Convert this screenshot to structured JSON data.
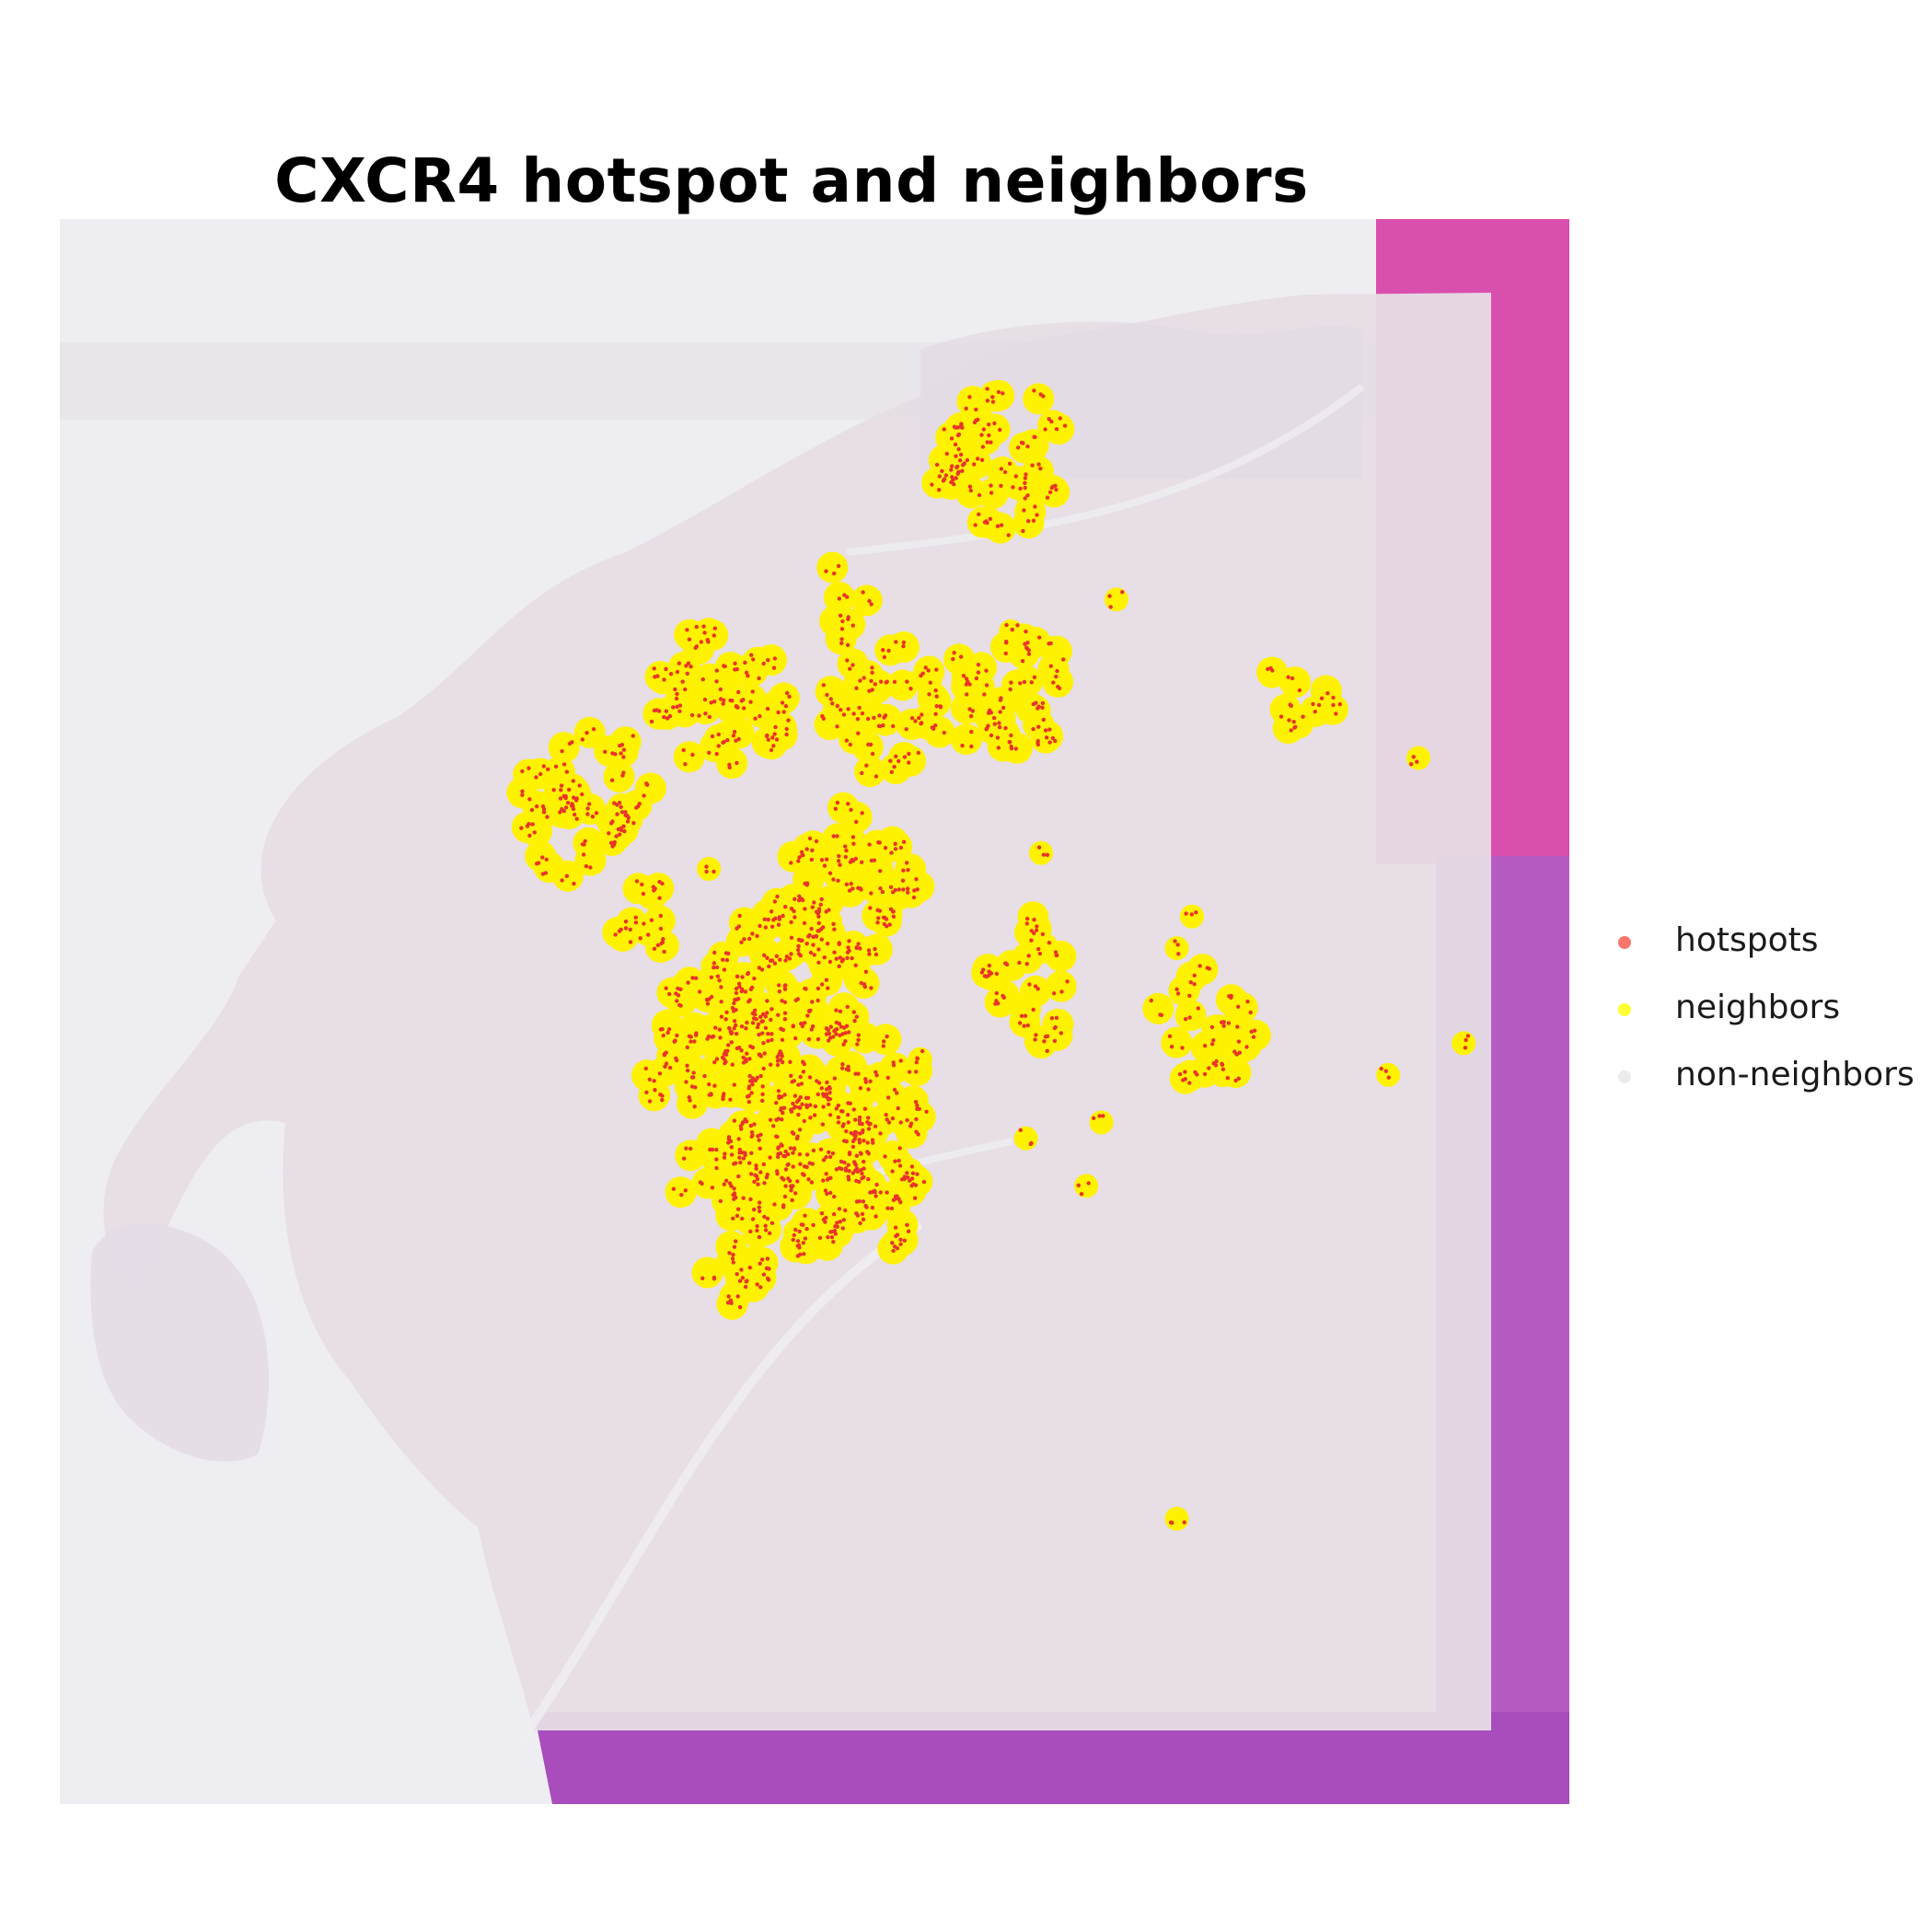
{
  "chart_data": {
    "type": "scatter",
    "title": "CXCR4 hotspot and neighbors",
    "xlabel": "",
    "ylabel": "",
    "grid": false,
    "legend_position": "right",
    "background": "H&E tissue section image (faded overlay)",
    "series": [
      {
        "name": "hotspots",
        "color": "#F8766D"
      },
      {
        "name": "neighbors",
        "color": "#FFFF33"
      },
      {
        "name": "non-neighbors",
        "color": "#EBEBEB"
      }
    ],
    "clusters": [
      {
        "x": 0.62,
        "y": 0.15,
        "n": 40
      },
      {
        "x": 0.52,
        "y": 0.24,
        "n": 6
      },
      {
        "x": 0.44,
        "y": 0.3,
        "n": 40
      },
      {
        "x": 0.55,
        "y": 0.31,
        "n": 30
      },
      {
        "x": 0.63,
        "y": 0.3,
        "n": 30
      },
      {
        "x": 0.35,
        "y": 0.37,
        "n": 40
      },
      {
        "x": 0.52,
        "y": 0.42,
        "n": 50
      },
      {
        "x": 0.48,
        "y": 0.49,
        "n": 60
      },
      {
        "x": 0.44,
        "y": 0.53,
        "n": 60
      },
      {
        "x": 0.53,
        "y": 0.55,
        "n": 40
      },
      {
        "x": 0.49,
        "y": 0.6,
        "n": 50
      },
      {
        "x": 0.45,
        "y": 0.61,
        "n": 30
      },
      {
        "x": 0.54,
        "y": 0.61,
        "n": 30
      },
      {
        "x": 0.39,
        "y": 0.45,
        "n": 10
      },
      {
        "x": 0.64,
        "y": 0.47,
        "n": 12
      },
      {
        "x": 0.64,
        "y": 0.51,
        "n": 8
      },
      {
        "x": 0.76,
        "y": 0.51,
        "n": 20
      },
      {
        "x": 0.82,
        "y": 0.3,
        "n": 8
      },
      {
        "x": 0.44,
        "y": 0.67,
        "n": 10
      }
    ],
    "isolated_points": [
      {
        "x": 0.7,
        "y": 0.24
      },
      {
        "x": 0.63,
        "y": 0.26
      },
      {
        "x": 0.9,
        "y": 0.34
      },
      {
        "x": 0.65,
        "y": 0.4
      },
      {
        "x": 0.43,
        "y": 0.41
      },
      {
        "x": 0.75,
        "y": 0.44
      },
      {
        "x": 0.74,
        "y": 0.46
      },
      {
        "x": 0.69,
        "y": 0.57
      },
      {
        "x": 0.64,
        "y": 0.58
      },
      {
        "x": 0.68,
        "y": 0.61
      },
      {
        "x": 0.57,
        "y": 0.53
      },
      {
        "x": 0.88,
        "y": 0.54
      },
      {
        "x": 0.93,
        "y": 0.52
      },
      {
        "x": 0.74,
        "y": 0.82
      }
    ]
  }
}
